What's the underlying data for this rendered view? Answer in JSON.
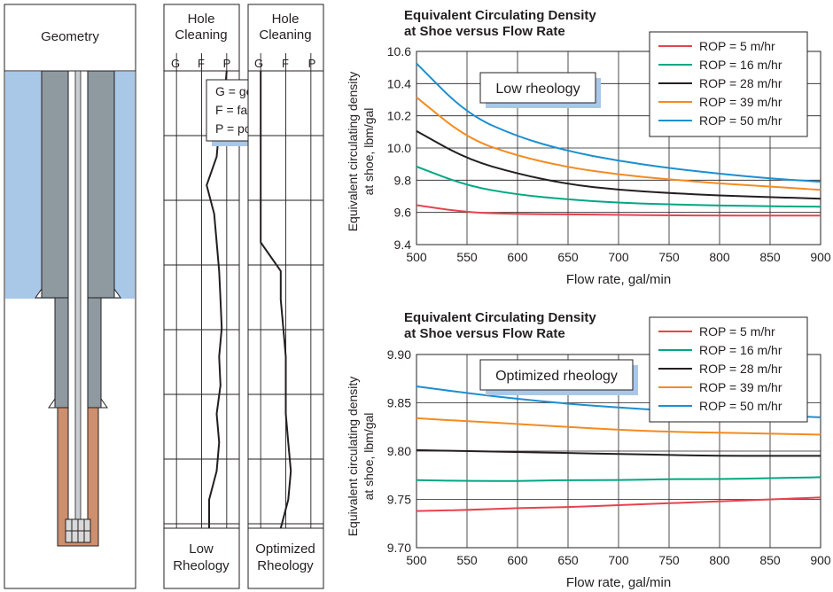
{
  "geometry": {
    "title": "Geometry"
  },
  "hole_cleaning": {
    "header": [
      "Hole",
      "Cleaning"
    ],
    "scale": [
      "G",
      "F",
      "P"
    ],
    "key": [
      "G = good",
      "F = fair",
      "P = poor"
    ],
    "low": {
      "label": [
        "Low",
        "Rheology"
      ],
      "profile": [
        3.0,
        2.9,
        2.7,
        2.6,
        2.2,
        2.5,
        2.6,
        2.7,
        2.75,
        2.8,
        2.7,
        2.75,
        2.6,
        2.7,
        2.6,
        2.3,
        2.3
      ]
    },
    "optimized": {
      "label": [
        "Optimized",
        "Rheology"
      ],
      "profile": [
        1.0,
        1.0,
        1.0,
        1.0,
        1.0,
        1.0,
        1.0,
        1.8,
        1.8,
        1.9,
        2.0,
        2.0,
        2.0,
        2.1,
        2.2,
        2.1,
        1.8
      ]
    }
  },
  "chart_data": [
    {
      "type": "line",
      "title": [
        "Equivalent Circulating Density",
        "at Shoe versus Flow Rate"
      ],
      "annotation": "Low rheology",
      "xlabel": "Flow rate, gal/min",
      "ylabel": [
        "Equivalent circulating density",
        "at shoe, lbm/gal"
      ],
      "xlim": [
        500,
        900
      ],
      "ylim": [
        9.4,
        10.6
      ],
      "x_ticks": [
        500,
        550,
        600,
        650,
        700,
        750,
        800,
        850,
        900
      ],
      "y_ticks": [
        "9.4",
        "9.6",
        "9.8",
        "10.0",
        "10.2",
        "10.4",
        "10.6"
      ],
      "grid": true,
      "legend_position": "top-right",
      "x": [
        500,
        550,
        600,
        650,
        700,
        750,
        800,
        850,
        900
      ],
      "series": [
        {
          "name": "ROP = 5 m/hr",
          "color": "#e8424f",
          "values": [
            9.645,
            9.6,
            9.59,
            9.588,
            9.585,
            9.582,
            9.58,
            9.58,
            9.58
          ]
        },
        {
          "name": "ROP = 16 m/hr",
          "color": "#00a783",
          "values": [
            9.885,
            9.765,
            9.71,
            9.68,
            9.66,
            9.65,
            9.643,
            9.638,
            9.635
          ]
        },
        {
          "name": "ROP = 28 m/hr",
          "color": "#231f20",
          "values": [
            10.105,
            9.93,
            9.84,
            9.775,
            9.74,
            9.72,
            9.705,
            9.695,
            9.685
          ]
        },
        {
          "name": "ROP = 39 m/hr",
          "color": "#f38b20",
          "values": [
            10.315,
            10.06,
            9.95,
            9.88,
            9.835,
            9.805,
            9.78,
            9.76,
            9.74
          ]
        },
        {
          "name": "ROP = 50 m/hr",
          "color": "#1b8fd0",
          "values": [
            10.525,
            10.21,
            10.07,
            9.98,
            9.92,
            9.875,
            9.84,
            9.81,
            9.79
          ]
        }
      ]
    },
    {
      "type": "line",
      "title": [
        "Equivalent Circulating Density",
        "at Shoe versus Flow Rate"
      ],
      "annotation": "Optimized rheology",
      "xlabel": "Flow rate, gal/min",
      "ylabel": [
        "Equivalent circulating density",
        "at shoe, lbm/gal"
      ],
      "xlim": [
        500,
        900
      ],
      "ylim": [
        9.7,
        9.9
      ],
      "x_ticks": [
        500,
        550,
        600,
        650,
        700,
        750,
        800,
        850,
        900
      ],
      "y_ticks": [
        "9.70",
        "9.75",
        "9.80",
        "9.85",
        "9.90"
      ],
      "grid": true,
      "legend_position": "top-right",
      "x": [
        500,
        550,
        600,
        650,
        700,
        750,
        800,
        850,
        900
      ],
      "series": [
        {
          "name": "ROP = 5 m/hr",
          "color": "#e8424f",
          "values": [
            9.738,
            9.739,
            9.741,
            9.742,
            9.744,
            9.746,
            9.748,
            9.75,
            9.752
          ]
        },
        {
          "name": "ROP = 16 m/hr",
          "color": "#00a783",
          "values": [
            9.77,
            9.769,
            9.769,
            9.77,
            9.77,
            9.771,
            9.771,
            9.772,
            9.773
          ]
        },
        {
          "name": "ROP = 28 m/hr",
          "color": "#231f20",
          "values": [
            9.801,
            9.8,
            9.799,
            9.798,
            9.797,
            9.796,
            9.795,
            9.795,
            9.795
          ]
        },
        {
          "name": "ROP = 39 m/hr",
          "color": "#f38b20",
          "values": [
            9.834,
            9.831,
            9.828,
            9.825,
            9.822,
            9.82,
            9.819,
            9.818,
            9.817
          ]
        },
        {
          "name": "ROP = 50 m/hr",
          "color": "#1b8fd0",
          "values": [
            9.867,
            9.86,
            9.854,
            9.849,
            9.845,
            9.842,
            9.839,
            9.837,
            9.835
          ]
        }
      ]
    }
  ]
}
